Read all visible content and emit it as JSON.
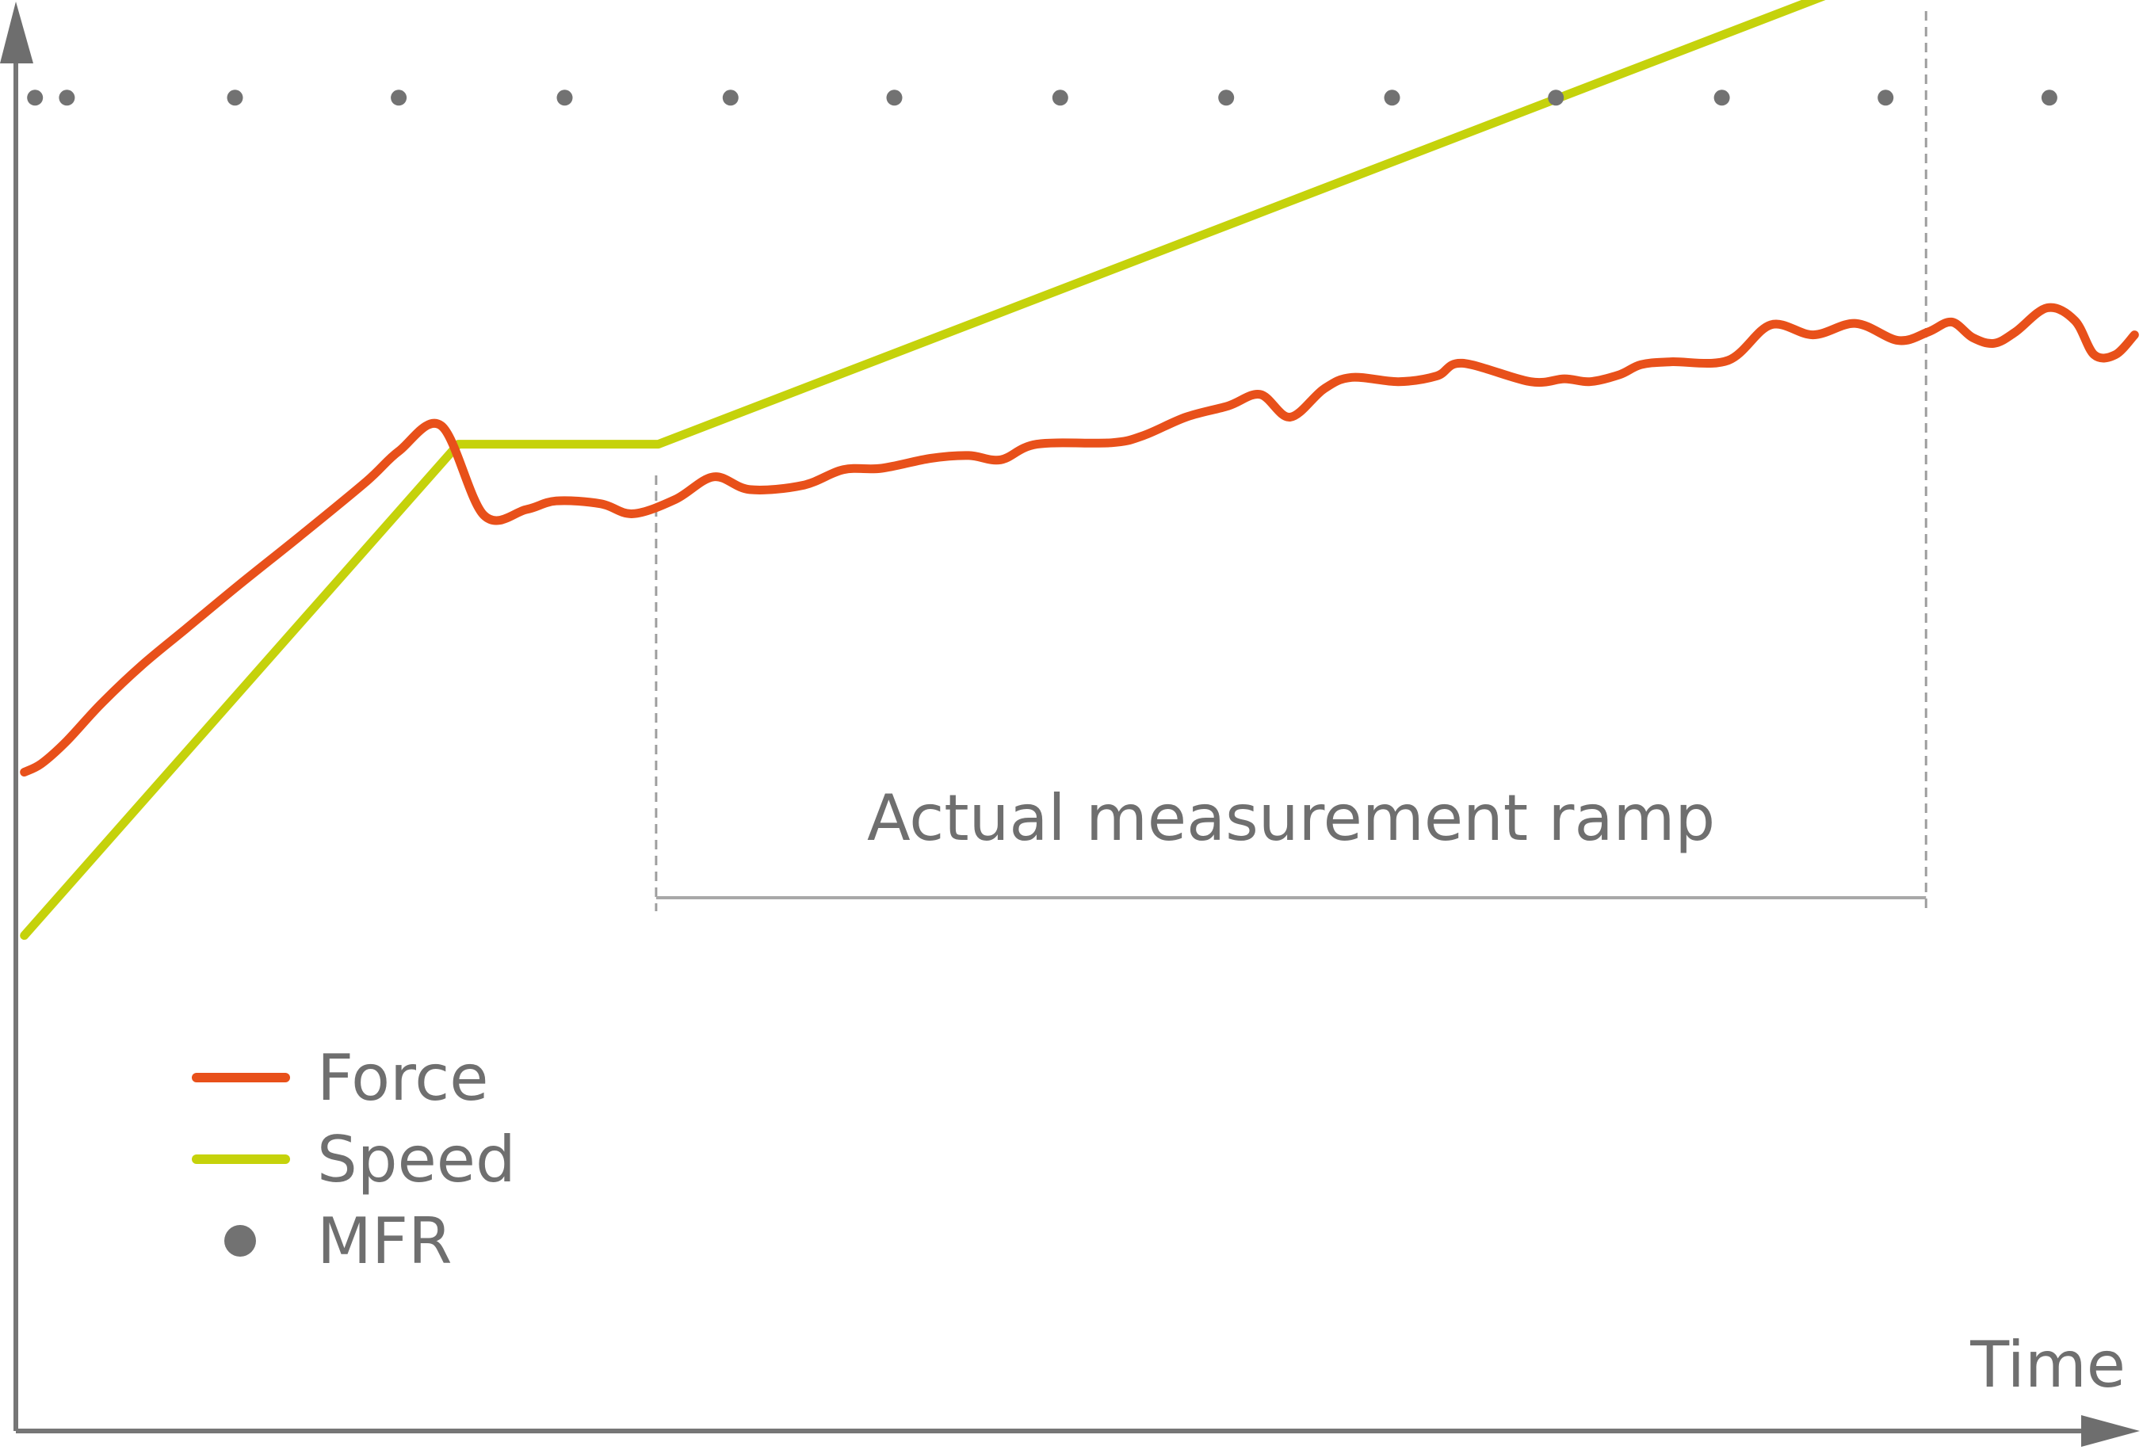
{
  "chart_data": {
    "type": "line",
    "title": "",
    "xlabel": "Time",
    "ylabel": "",
    "xlim": [
      0,
      100
    ],
    "ylim": [
      0,
      100
    ],
    "grid": false,
    "legend_position": "bottom-left",
    "annotation": {
      "label": "Actual measurement ramp",
      "x_start": 30.1,
      "x_end": 89.8
    },
    "series": [
      {
        "name": "Force",
        "kind": "line",
        "color": "#e8501a",
        "points": [
          [
            0.4,
            46.4
          ],
          [
            1.2,
            47.0
          ],
          [
            2.4,
            48.6
          ],
          [
            4.0,
            51.2
          ],
          [
            5.9,
            53.9
          ],
          [
            8.0,
            56.5
          ],
          [
            10.5,
            59.6
          ],
          [
            13.5,
            63.2
          ],
          [
            16.5,
            66.9
          ],
          [
            18.0,
            69.0
          ],
          [
            20.0,
            70.8
          ],
          [
            22.0,
            64.5
          ],
          [
            24.0,
            64.9
          ],
          [
            25.4,
            65.5
          ],
          [
            27.5,
            65.3
          ],
          [
            29.0,
            64.6
          ],
          [
            31.0,
            65.6
          ],
          [
            32.8,
            67.2
          ],
          [
            34.5,
            66.3
          ],
          [
            37.0,
            66.6
          ],
          [
            38.9,
            67.7
          ],
          [
            40.7,
            67.8
          ],
          [
            43.0,
            68.5
          ],
          [
            44.8,
            68.7
          ],
          [
            46.3,
            68.4
          ],
          [
            48.0,
            69.5
          ],
          [
            51.5,
            69.6
          ],
          [
            53.0,
            70.1
          ],
          [
            55.0,
            71.4
          ],
          [
            57.0,
            72.2
          ],
          [
            58.5,
            73.0
          ],
          [
            59.9,
            71.4
          ],
          [
            61.5,
            73.4
          ],
          [
            62.8,
            74.2
          ],
          [
            65.0,
            73.9
          ],
          [
            66.8,
            74.3
          ],
          [
            68.0,
            75.2
          ],
          [
            71.2,
            73.9
          ],
          [
            72.8,
            74.1
          ],
          [
            74.0,
            73.9
          ],
          [
            75.4,
            74.4
          ],
          [
            76.4,
            75.1
          ],
          [
            77.8,
            75.3
          ],
          [
            80.5,
            75.4
          ],
          [
            82.5,
            77.9
          ],
          [
            84.5,
            77.2
          ],
          [
            86.5,
            78.0
          ],
          [
            88.5,
            76.8
          ],
          [
            89.9,
            77.4
          ],
          [
            91.0,
            78.1
          ],
          [
            92.0,
            77.0
          ],
          [
            93.0,
            76.6
          ],
          [
            94.0,
            77.4
          ],
          [
            95.5,
            79.1
          ],
          [
            96.8,
            78.2
          ],
          [
            97.7,
            75.8
          ],
          [
            98.7,
            75.8
          ],
          [
            99.6,
            77.2
          ]
        ]
      },
      {
        "name": "Speed",
        "kind": "line",
        "color": "#c5d20b",
        "points": [
          [
            0.4,
            34.9
          ],
          [
            20.8,
            69.5
          ],
          [
            30.2,
            69.5
          ],
          [
            89.4,
            103.6
          ],
          [
            99.6,
            103.6
          ]
        ]
      },
      {
        "name": "MFR",
        "kind": "scatter",
        "color": "#727272",
        "x": [
          0.9,
          2.4,
          10.3,
          18.0,
          25.8,
          33.6,
          41.3,
          49.1,
          56.9,
          64.7,
          72.4,
          80.2,
          87.9,
          95.6
        ],
        "y": [
          93.9,
          93.9,
          93.9,
          93.9,
          93.9,
          93.9,
          93.9,
          93.9,
          93.9,
          93.9,
          93.9,
          93.9,
          93.9,
          93.9
        ]
      }
    ]
  }
}
